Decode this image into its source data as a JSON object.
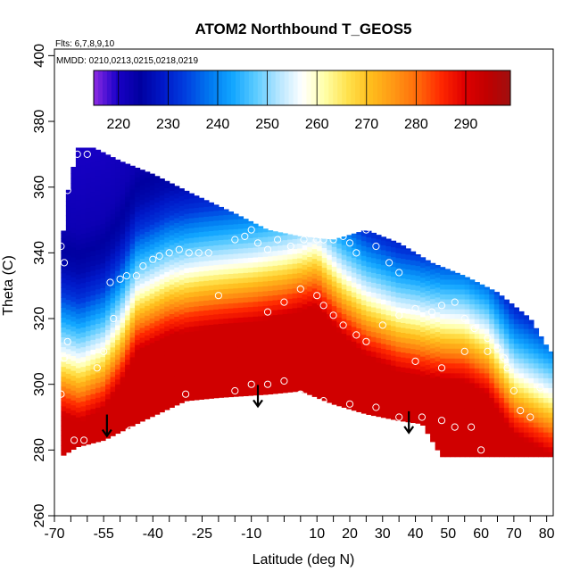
{
  "chart_data": {
    "type": "heatmap",
    "title": "ATOM2 Northbound T_GEOS5",
    "annotations": [
      "Flts: 6,7,8,9,10",
      "MMDD: 0210,0213,0215,0218,0219"
    ],
    "xlabel": "Latitude (deg N)",
    "ylabel": "Theta (C)",
    "xlim": [
      -70,
      82
    ],
    "ylim": [
      260,
      402
    ],
    "x_ticks": [
      -70,
      -55,
      -40,
      -25,
      -10,
      10,
      20,
      30,
      40,
      50,
      60,
      70,
      80
    ],
    "x_minor_ticks": [
      -65,
      -60,
      -50,
      -45,
      -35,
      -30,
      -20,
      -15,
      -5,
      0,
      5,
      15,
      25,
      35,
      45,
      55,
      65,
      75
    ],
    "y_ticks": [
      260,
      280,
      300,
      320,
      340,
      360,
      380,
      400
    ],
    "colorbar": {
      "range": [
        215,
        299
      ],
      "ticks": [
        220,
        230,
        240,
        250,
        260,
        270,
        280,
        290
      ],
      "colors": [
        "#8e2be2",
        "#1a00c8",
        "#0000a0",
        "#0018c8",
        "#0040e0",
        "#0078f0",
        "#12a6ff",
        "#5ccbff",
        "#b6e6ff",
        "#ffffff",
        "#ffffa6",
        "#ffe04a",
        "#ffbc1c",
        "#ff9614",
        "#ff6a0a",
        "#ff2800",
        "#e00000",
        "#c00000",
        "#a01010"
      ]
    },
    "domain": {
      "top": [
        [
          -68,
          340
        ],
        [
          -66,
          358
        ],
        [
          -63,
          372
        ],
        [
          -58,
          372
        ],
        [
          -50,
          368
        ],
        [
          -40,
          364
        ],
        [
          -28,
          358
        ],
        [
          -15,
          352
        ],
        [
          -5,
          347
        ],
        [
          5,
          345
        ],
        [
          15,
          344
        ],
        [
          25,
          347
        ],
        [
          35,
          343
        ],
        [
          45,
          337
        ],
        [
          55,
          333
        ],
        [
          65,
          328
        ],
        [
          75,
          320
        ],
        [
          81,
          310
        ]
      ],
      "bottom": [
        [
          -68,
          278
        ],
        [
          -63,
          281
        ],
        [
          -55,
          283
        ],
        [
          -45,
          288
        ],
        [
          -30,
          295
        ],
        [
          -20,
          296
        ],
        [
          -5,
          297
        ],
        [
          5,
          298
        ],
        [
          15,
          294
        ],
        [
          25,
          291
        ],
        [
          35,
          289
        ],
        [
          42,
          288
        ],
        [
          48,
          278
        ],
        [
          81,
          278
        ]
      ]
    },
    "temperature_profile": {
      "theta_offsets": [
        -3,
        -1,
        2,
        5,
        8,
        11,
        14,
        17,
        22,
        28,
        34,
        42,
        55,
        80
      ],
      "temps": [
        292,
        288,
        284,
        278,
        272,
        266,
        260,
        255,
        248,
        240,
        232,
        226,
        222,
        220
      ],
      "anchors": [
        [
          -68,
          294
        ],
        [
          -62,
          292
        ],
        [
          -55,
          296
        ],
        [
          -50,
          303
        ],
        [
          -45,
          313
        ],
        [
          -35,
          318
        ],
        [
          -25,
          320
        ],
        [
          -10,
          322
        ],
        [
          0,
          324
        ],
        [
          10,
          327
        ],
        [
          18,
          318
        ],
        [
          25,
          312
        ],
        [
          35,
          307
        ],
        [
          45,
          305
        ],
        [
          55,
          304
        ],
        [
          62,
          300
        ],
        [
          70,
          288
        ],
        [
          81,
          282
        ]
      ]
    },
    "flight_points": [
      [
        -67,
        337
      ],
      [
        -68,
        342
      ],
      [
        -66,
        359
      ],
      [
        -63,
        370
      ],
      [
        -60,
        370
      ],
      [
        -66,
        313
      ],
      [
        -67,
        308
      ],
      [
        -68,
        297
      ],
      [
        -64,
        283
      ],
      [
        -61,
        283
      ],
      [
        -57,
        305
      ],
      [
        -55,
        310
      ],
      [
        -52,
        320
      ],
      [
        -53,
        331
      ],
      [
        -50,
        332
      ],
      [
        -48,
        333
      ],
      [
        -45,
        333
      ],
      [
        -43,
        336
      ],
      [
        -40,
        338
      ],
      [
        -38,
        339
      ],
      [
        -35,
        340
      ],
      [
        -32,
        341
      ],
      [
        -29,
        340
      ],
      [
        -26,
        340
      ],
      [
        -23,
        340
      ],
      [
        -20,
        327
      ],
      [
        -15,
        344
      ],
      [
        -12,
        345
      ],
      [
        -10,
        347
      ],
      [
        -8,
        343
      ],
      [
        -5,
        341
      ],
      [
        -2,
        344
      ],
      [
        2,
        342
      ],
      [
        6,
        344
      ],
      [
        10,
        344
      ],
      [
        12,
        344
      ],
      [
        15,
        344
      ],
      [
        18,
        345
      ],
      [
        20,
        343
      ],
      [
        22,
        340
      ],
      [
        25,
        347
      ],
      [
        28,
        342
      ],
      [
        32,
        337
      ],
      [
        35,
        334
      ],
      [
        -47,
        286
      ],
      [
        -30,
        297
      ],
      [
        -15,
        298
      ],
      [
        -10,
        300
      ],
      [
        -5,
        300
      ],
      [
        0,
        301
      ],
      [
        5,
        297
      ],
      [
        12,
        295
      ],
      [
        20,
        294
      ],
      [
        28,
        293
      ],
      [
        35,
        290
      ],
      [
        42,
        290
      ],
      [
        48,
        289
      ],
      [
        52,
        287
      ],
      [
        57,
        287
      ],
      [
        60,
        280
      ],
      [
        -5,
        322
      ],
      [
        0,
        325
      ],
      [
        5,
        329
      ],
      [
        10,
        327
      ],
      [
        12,
        324
      ],
      [
        15,
        321
      ],
      [
        18,
        318
      ],
      [
        22,
        315
      ],
      [
        25,
        313
      ],
      [
        30,
        318
      ],
      [
        35,
        321
      ],
      [
        40,
        323
      ],
      [
        45,
        322
      ],
      [
        48,
        324
      ],
      [
        52,
        325
      ],
      [
        55,
        320
      ],
      [
        58,
        317
      ],
      [
        62,
        314
      ],
      [
        65,
        311
      ],
      [
        67,
        308
      ],
      [
        70,
        298
      ],
      [
        72,
        292
      ],
      [
        75,
        290
      ],
      [
        78,
        299
      ],
      [
        80,
        322
      ],
      [
        76,
        322
      ],
      [
        68,
        305
      ],
      [
        62,
        310
      ],
      [
        55,
        310
      ],
      [
        48,
        305
      ],
      [
        40,
        307
      ]
    ],
    "arrows": [
      [
        -54,
        287
      ],
      [
        -8,
        296
      ],
      [
        38,
        288
      ]
    ]
  }
}
